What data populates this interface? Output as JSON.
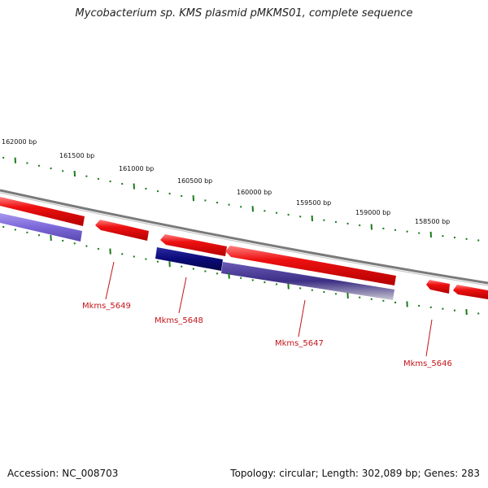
{
  "title": "Mycobacterium sp. KMS plasmid pMKMS01, complete sequence",
  "ruler": {
    "labels": [
      "162000 bp",
      "161500 bp",
      "161000 bp",
      "160500 bp",
      "160000 bp",
      "159500 bp",
      "159000 bp",
      "158500 bp"
    ]
  },
  "genes": [
    {
      "name": "Mkms_5649"
    },
    {
      "name": "Mkms_5648"
    },
    {
      "name": "Mkms_5647"
    },
    {
      "name": "Mkms_5646"
    }
  ],
  "colors": {
    "forward_gene": "#ee1111",
    "reverse_gene_dark": "#0a0a78",
    "reverse_gene_light": "#7b68d8",
    "backbone": "#8a8a8a",
    "ruler_ticks": "#1a7a1a",
    "gene_label": "#c4141a"
  },
  "footer": {
    "accession": "Accession: NC_008703",
    "topology": "Topology: circular; Length: 302,089 bp; Genes: 283"
  }
}
